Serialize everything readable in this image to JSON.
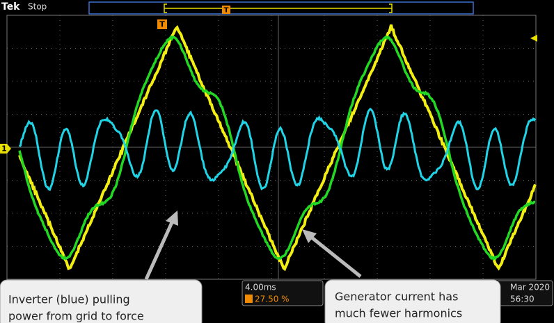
{
  "header": {
    "brand": "Tek",
    "status": "Stop"
  },
  "markers": {
    "trigger": "T",
    "channel": "1"
  },
  "readouts": {
    "timebase": "4.00ms",
    "trigger_position": "27.50 %",
    "date": "Mar 2020",
    "time": "56:30"
  },
  "callouts": [
    {
      "lines": [
        "Inverter (blue) pulling",
        "power from grid to force"
      ]
    },
    {
      "lines": [
        "Generator current has",
        "much fewer harmonics"
      ]
    }
  ]
}
